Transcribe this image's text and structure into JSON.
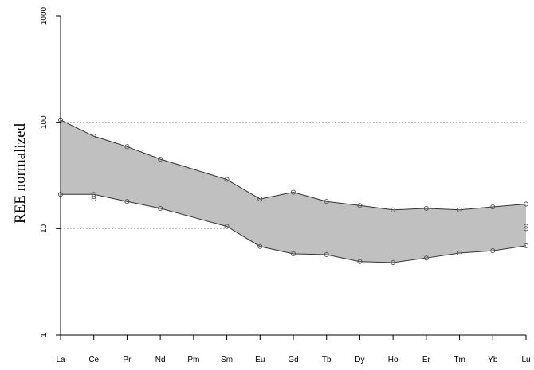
{
  "chart_data": {
    "type": "area",
    "title": "",
    "xlabel": "",
    "ylabel": "REE normalized",
    "y_scale": "log",
    "ylim": [
      1,
      1000
    ],
    "y_ticks": [
      "1",
      "10",
      "100",
      "1000"
    ],
    "grid": "dotted horizontal lines at 10 and 100",
    "categories": [
      "La",
      "Ce",
      "Pr",
      "Nd",
      "Pm",
      "Sm",
      "Eu",
      "Gd",
      "Tb",
      "Dy",
      "Ho",
      "Er",
      "Tm",
      "Yb",
      "Lu"
    ],
    "colors": {
      "band_fill": "#c0c0c0",
      "band_edge": "#333333",
      "grid": "#aaaaaa",
      "point_stroke": "#555555"
    },
    "series": [
      {
        "values": [
          105,
          74,
          59,
          45,
          null,
          29,
          19,
          22,
          18,
          16.5,
          15,
          15.5,
          15,
          16,
          17
        ]
      },
      {
        "values": [
          21,
          21,
          18,
          15.5,
          null,
          10.5,
          6.8,
          5.8,
          5.7,
          4.9,
          4.8,
          5.3,
          5.9,
          6.2,
          6.9
        ]
      }
    ],
    "extra_points": [
      {
        "x": "Ce",
        "y": 19
      },
      {
        "x": "Ce",
        "y": 20
      },
      {
        "x": "Lu",
        "y": 10.5
      },
      {
        "x": "Lu",
        "y": 10
      }
    ]
  }
}
